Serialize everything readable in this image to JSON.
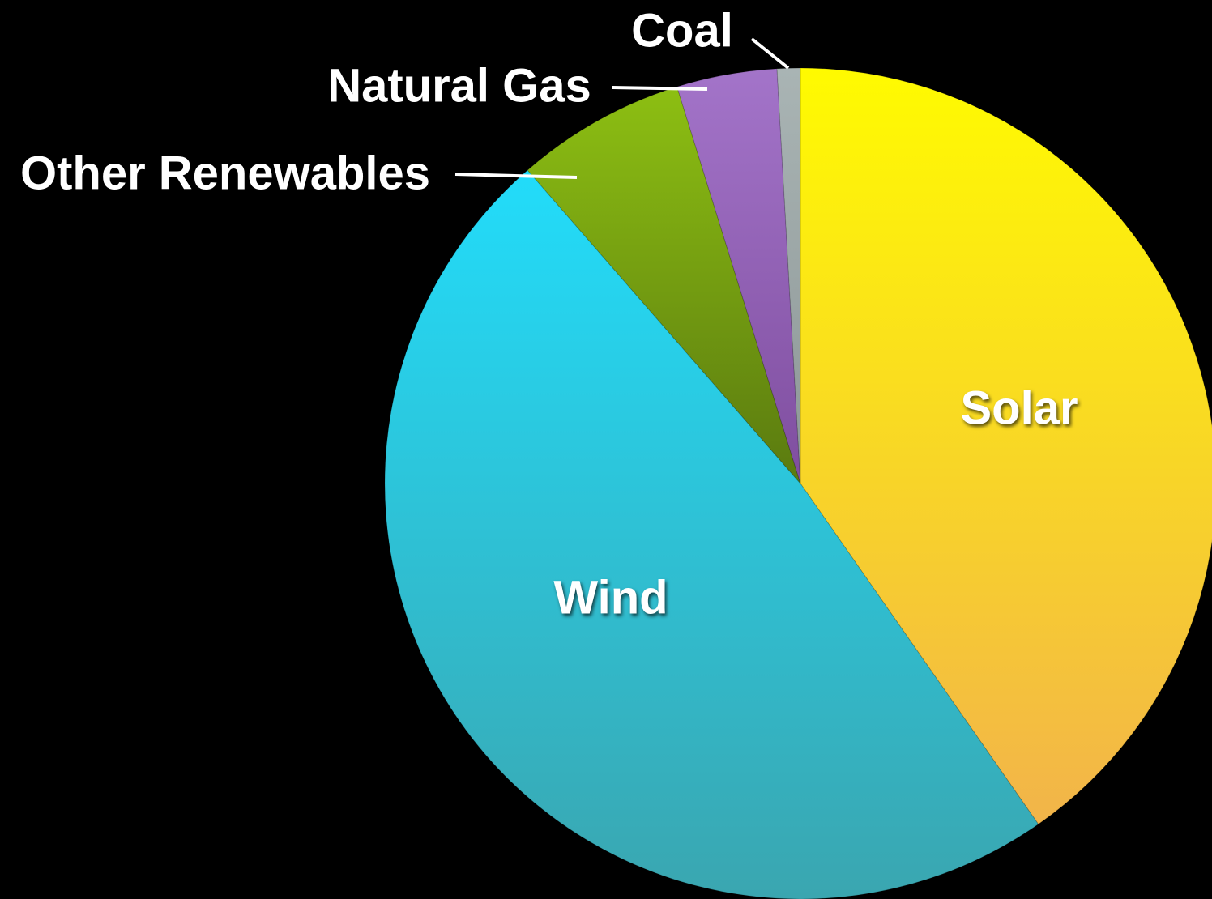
{
  "chart_data": {
    "type": "pie",
    "title": "",
    "start_angle_deg": 0,
    "direction": "clockwise",
    "slices": [
      {
        "label": "Solar",
        "value": 40.3,
        "color_top": "#fffb00",
        "color_bottom": "#f2b44a",
        "label_position": "inside"
      },
      {
        "label": "Wind",
        "value": 48.3,
        "color_top": "#22dcfa",
        "color_bottom": "#3aa6b0",
        "label_position": "inside"
      },
      {
        "label": "Other Renewables",
        "value": 6.6,
        "color_top": "#8dbf12",
        "color_bottom": "#5a7a10",
        "label_position": "outside"
      },
      {
        "label": "Natural Gas",
        "value": 3.9,
        "color_top": "#a374c9",
        "color_bottom": "#7f4e9f",
        "label_position": "outside"
      },
      {
        "label": "Coal",
        "value": 0.9,
        "color_top": "#a9b4b4",
        "color_bottom": "#8d9797",
        "label_position": "outside"
      }
    ],
    "legend": "none",
    "grid": false
  }
}
